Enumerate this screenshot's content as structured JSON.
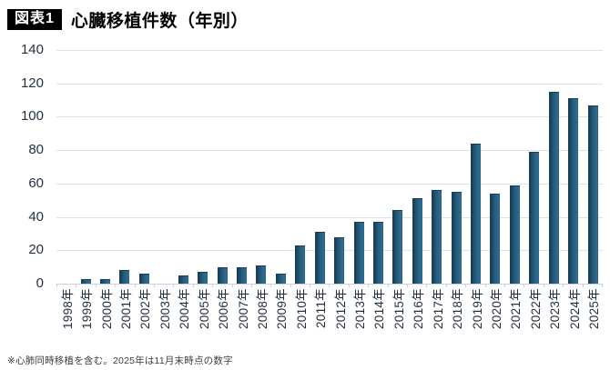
{
  "header": {
    "badge": "図表1",
    "title": "心臓移植件数（年別）"
  },
  "chart_data": {
    "type": "bar",
    "title": "心臓移植件数（年別）",
    "categories": [
      "1998年",
      "1999年",
      "2000年",
      "2001年",
      "2002年",
      "2003年",
      "2004年",
      "2005年",
      "2006年",
      "2007年",
      "2008年",
      "2009年",
      "2010年",
      "2011年",
      "2012年",
      "2013年",
      "2014年",
      "2015年",
      "2016年",
      "2017年",
      "2018年",
      "2019年",
      "2020年",
      "2021年",
      "2022年",
      "2023年",
      "2024年",
      "2025年"
    ],
    "values": [
      0,
      3,
      3,
      8,
      6,
      0,
      5,
      7,
      10,
      10,
      11,
      6,
      23,
      31,
      28,
      37,
      37,
      44,
      51,
      56,
      55,
      84,
      54,
      59,
      79,
      115,
      111,
      107
    ],
    "xlabel": "",
    "ylabel": "",
    "ylim": [
      0,
      140
    ],
    "yticks": [
      0,
      20,
      40,
      60,
      80,
      100,
      120,
      140
    ],
    "grid": true,
    "legend": "none",
    "bar_color_dark": "#17384e",
    "bar_color_light": "#2f6b8e",
    "gridline_color": "#d9e3ef"
  },
  "footnote": "※心肺同時移植を含む。2025年は11月末時点の数字"
}
